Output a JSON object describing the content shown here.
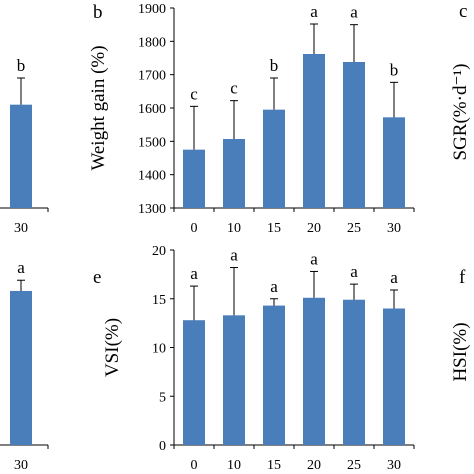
{
  "colors": {
    "bar": "#4a7ebb",
    "axis": "#000000",
    "error_bar": "#000000",
    "background": "#ffffff"
  },
  "chart_data": [
    {
      "panel": "a",
      "type": "bar",
      "visible": "partial",
      "categories": [
        "30"
      ],
      "values": [
        1610
      ],
      "errors": [
        80
      ],
      "significance": [
        "b"
      ],
      "ylabel": "",
      "ylim": [
        1300,
        1900
      ],
      "grid": false,
      "legend": "none"
    },
    {
      "panel": "b",
      "type": "bar",
      "categories": [
        "0",
        "10",
        "15",
        "20",
        "25",
        "30"
      ],
      "values": [
        1475,
        1507,
        1595,
        1762,
        1738,
        1572
      ],
      "errors": [
        130,
        115,
        95,
        90,
        112,
        105
      ],
      "significance": [
        "c",
        "c",
        "b",
        "a",
        "a",
        "b"
      ],
      "ylabel": "Weight gain (%)",
      "ylim": [
        1300,
        1900
      ],
      "yticks": [
        1300,
        1400,
        1500,
        1600,
        1700,
        1800,
        1900
      ],
      "grid": false,
      "legend": "none"
    },
    {
      "panel": "c",
      "type": "bar",
      "visible": "partial",
      "ylabel": "SGR(%·d⁻¹)"
    },
    {
      "panel": "d",
      "type": "bar",
      "visible": "partial",
      "categories": [
        "30"
      ],
      "values": [
        15.8
      ],
      "errors": [
        1.1
      ],
      "significance": [
        "a"
      ],
      "ylabel": "",
      "ylim": [
        0,
        20
      ],
      "grid": false,
      "legend": "none"
    },
    {
      "panel": "e",
      "type": "bar",
      "categories": [
        "0",
        "10",
        "15",
        "20",
        "25",
        "30"
      ],
      "values": [
        12.8,
        13.3,
        14.3,
        15.1,
        14.9,
        14.0
      ],
      "errors": [
        3.5,
        4.9,
        0.7,
        2.7,
        1.6,
        1.9
      ],
      "significance": [
        "a",
        "a",
        "a",
        "a",
        "a",
        "a"
      ],
      "ylabel": "VSI(%)",
      "ylim": [
        0,
        20
      ],
      "yticks": [
        0,
        5,
        10,
        15,
        20
      ],
      "grid": false,
      "legend": "none"
    },
    {
      "panel": "f",
      "type": "bar",
      "visible": "partial",
      "ylabel": "HSI(%)"
    }
  ]
}
